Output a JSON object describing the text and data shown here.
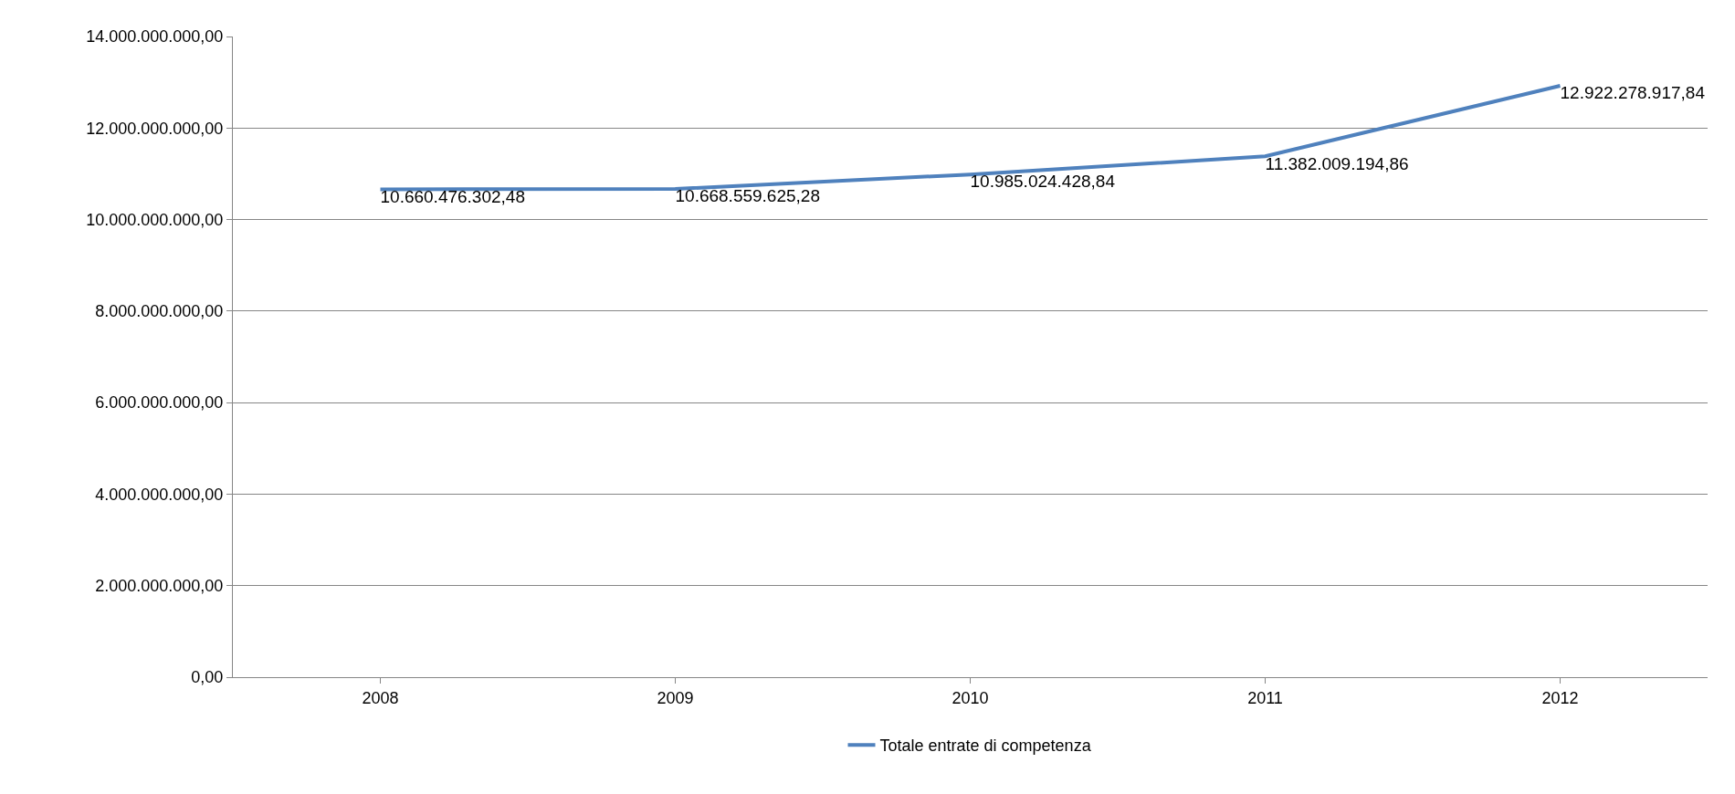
{
  "chart_data": {
    "type": "line",
    "categories": [
      "2008",
      "2009",
      "2010",
      "2011",
      "2012"
    ],
    "series": [
      {
        "name": "Totale entrate di competenza",
        "color": "#4f81bd",
        "values": [
          10660476302.48,
          10668559625.28,
          10985024428.84,
          11382009194.86,
          12922278917.84
        ],
        "value_labels": [
          "10.660.476.302,48",
          "10.668.559.625,28",
          "10.985.024.428,84",
          "11.382.009.194,86",
          "12.922.278.917,84"
        ]
      }
    ],
    "ylim": [
      0,
      14000000000
    ],
    "yticks": [
      {
        "value": 0,
        "label": "0,00"
      },
      {
        "value": 2000000000,
        "label": "2.000.000.000,00"
      },
      {
        "value": 4000000000,
        "label": "4.000.000.000,00"
      },
      {
        "value": 6000000000,
        "label": "6.000.000.000,00"
      },
      {
        "value": 8000000000,
        "label": "8.000.000.000,00"
      },
      {
        "value": 10000000000,
        "label": "10.000.000.000,00"
      },
      {
        "value": 12000000000,
        "label": "12.000.000.000,00"
      },
      {
        "value": 14000000000,
        "label": "14.000.000.000,00"
      }
    ],
    "grid": "y",
    "legend": "bottom",
    "marker": "none",
    "line_style": "solid"
  }
}
